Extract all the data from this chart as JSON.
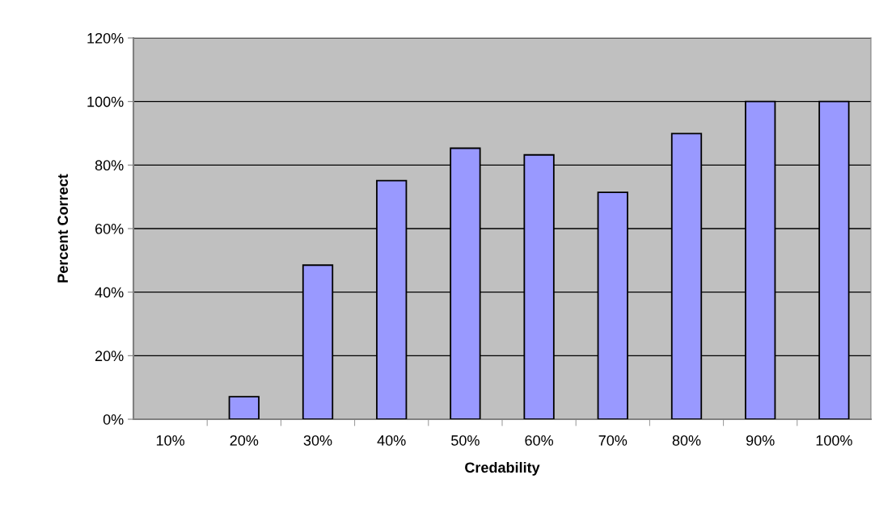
{
  "chart_data": {
    "type": "bar",
    "xlabel": "Credability",
    "ylabel": "Percent Correct",
    "categories": [
      "10%",
      "20%",
      "30%",
      "40%",
      "50%",
      "60%",
      "70%",
      "80%",
      "90%",
      "100%"
    ],
    "values": [
      null,
      7.1,
      48.5,
      75.1,
      85.3,
      83.2,
      71.4,
      89.9,
      100,
      100
    ],
    "color": "#9999ff",
    "ylim": [
      0,
      120
    ],
    "yticks": [
      {
        "value": 0,
        "label": "0%"
      },
      {
        "value": 20,
        "label": "20%"
      },
      {
        "value": 40,
        "label": "40%"
      },
      {
        "value": 60,
        "label": "60%"
      },
      {
        "value": 80,
        "label": "80%"
      },
      {
        "value": 100,
        "label": "100%"
      },
      {
        "value": 120,
        "label": "120%"
      }
    ],
    "grid": "y",
    "legend": false
  }
}
